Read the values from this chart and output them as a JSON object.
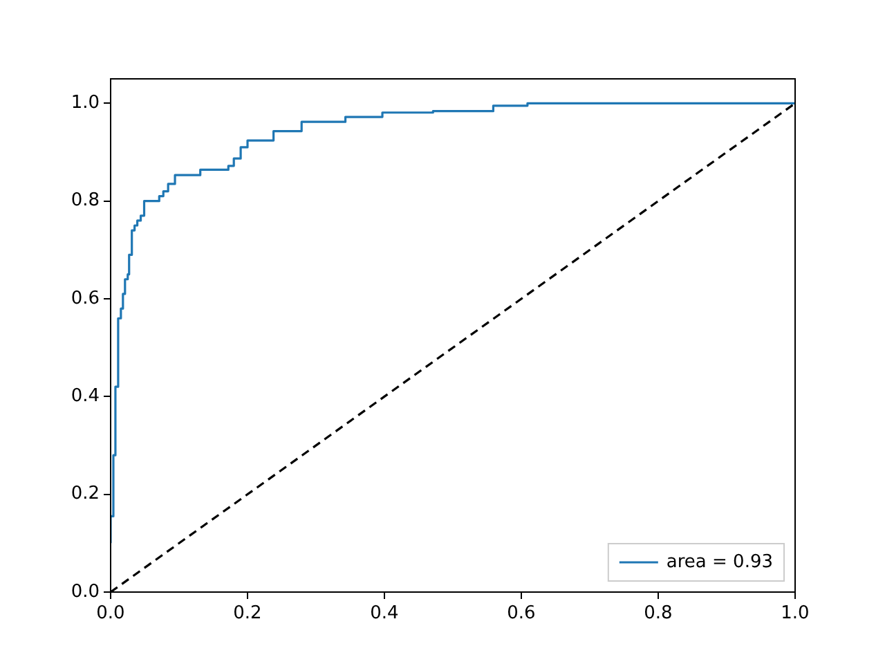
{
  "chart_data": {
    "type": "step",
    "xlim": [
      0,
      1
    ],
    "ylim": [
      0,
      1.05
    ],
    "xticks": [
      {
        "value": 0,
        "label": "0.0"
      },
      {
        "value": 0.2,
        "label": "0.2"
      },
      {
        "value": 0.4,
        "label": "0.4"
      },
      {
        "value": 0.6,
        "label": "0.6"
      },
      {
        "value": 0.8,
        "label": "0.8"
      },
      {
        "value": 1,
        "label": "1.0"
      }
    ],
    "yticks": [
      {
        "value": 0,
        "label": "0.0"
      },
      {
        "value": 0.2,
        "label": "0.2"
      },
      {
        "value": 0.4,
        "label": "0.4"
      },
      {
        "value": 0.6,
        "label": "0.6"
      },
      {
        "value": 0.8,
        "label": "0.8"
      },
      {
        "value": 1,
        "label": "1.0"
      }
    ],
    "grid": false,
    "legend": "bottom right",
    "series": [
      {
        "name": "area = 0.93",
        "color": "#1f77b4",
        "x": [
          0,
          0.004,
          0.007,
          0.011,
          0.015,
          0.018,
          0.021,
          0.025,
          0.027,
          0.031,
          0.035,
          0.039,
          0.044,
          0.049,
          0.071,
          0.077,
          0.084,
          0.09,
          0.094,
          0.131,
          0.172,
          0.18,
          0.19,
          0.2,
          0.238,
          0.279,
          0.343,
          0.397,
          0.471,
          0.559,
          0.609,
          0.892,
          1
        ],
        "values": [
          0.1,
          0.155,
          0.28,
          0.42,
          0.56,
          0.58,
          0.61,
          0.64,
          0.65,
          0.69,
          0.74,
          0.75,
          0.76,
          0.77,
          0.8,
          0.81,
          0.82,
          0.835,
          0.835,
          0.853,
          0.864,
          0.872,
          0.887,
          0.91,
          0.924,
          0.943,
          0.962,
          0.972,
          0.981,
          0.984,
          0.995,
          1,
          1
        ]
      },
      {
        "type": "line",
        "color": "#000000",
        "line_style": "dashed",
        "x": [
          0,
          1
        ],
        "values": [
          0,
          1
        ]
      }
    ]
  }
}
